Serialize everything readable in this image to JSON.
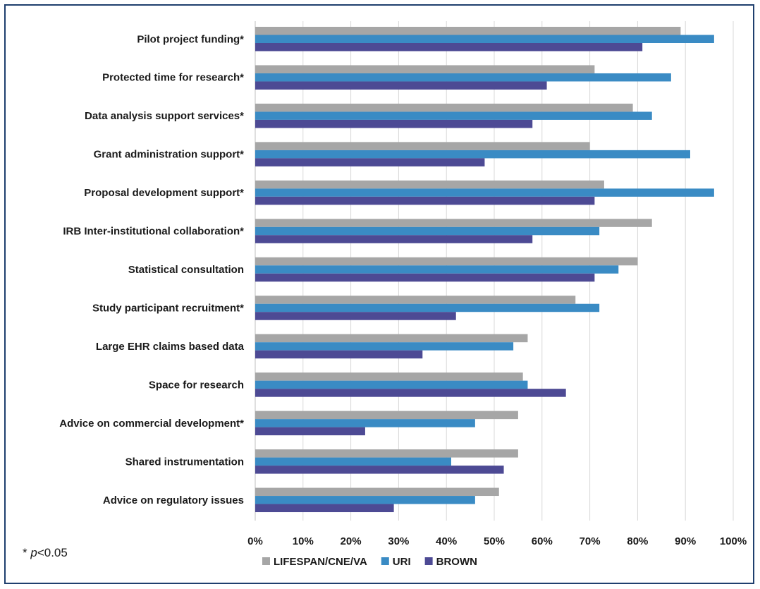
{
  "chart_data": {
    "type": "bar",
    "orientation": "horizontal",
    "categories": [
      "Pilot project funding*",
      "Protected time for research*",
      "Data analysis support services*",
      "Grant administration support*",
      "Proposal development support*",
      "IRB Inter-institutional collaboration*",
      "Statistical consultation",
      "Study participant recruitment*",
      "Large EHR claims based data",
      "Space for research",
      "Advice on commercial development*",
      "Shared instrumentation",
      "Advice on regulatory issues"
    ],
    "series": [
      {
        "name": "LIFESPAN/CNE/VA",
        "color": "#a6a6a6",
        "values": [
          89,
          71,
          79,
          70,
          73,
          83,
          80,
          67,
          57,
          56,
          55,
          55,
          51
        ]
      },
      {
        "name": "URI",
        "color": "#3a8bc4",
        "values": [
          96,
          87,
          83,
          91,
          96,
          72,
          76,
          72,
          54,
          57,
          46,
          41,
          46
        ]
      },
      {
        "name": "BROWN",
        "color": "#4d4a94",
        "values": [
          81,
          61,
          58,
          48,
          71,
          58,
          71,
          42,
          35,
          65,
          23,
          52,
          29
        ]
      }
    ],
    "xlim": [
      0,
      100
    ],
    "xticks": [
      "0%",
      "10%",
      "20%",
      "30%",
      "40%",
      "50%",
      "60%",
      "70%",
      "80%",
      "90%",
      "100%"
    ],
    "grid": true,
    "legend": "bottom"
  },
  "footnote": {
    "prefix": "* ",
    "p": "p",
    "rest": "<0.05"
  }
}
